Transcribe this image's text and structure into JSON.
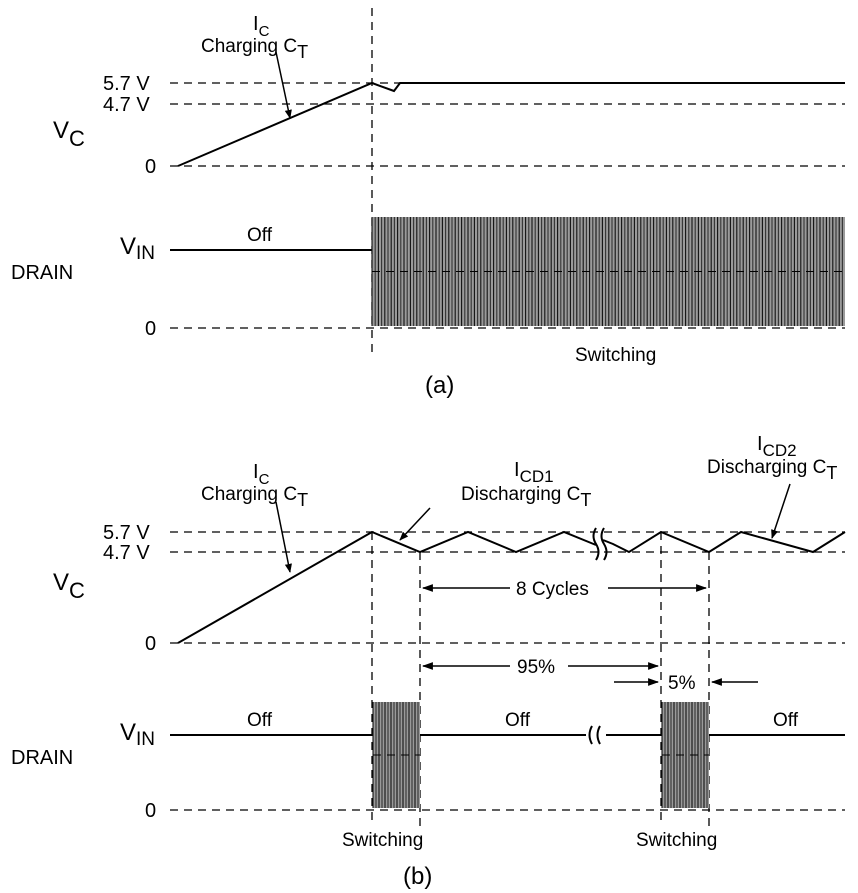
{
  "panel_a": {
    "vc_label_main": "V",
    "vc_label_sub": "C",
    "level_5_7": "5.7 V",
    "level_4_7": "4.7 V",
    "level_zero_vc": "0",
    "ic_main": "I",
    "ic_sub": "C",
    "charging_main": "Charging C",
    "charging_sub": "T",
    "drain_label": "DRAIN",
    "vin_main": "V",
    "vin_sub": "IN",
    "level_zero_drain": "0",
    "off_label": "Off",
    "switching_label": "Switching",
    "caption": "(a)"
  },
  "panel_b": {
    "vc_label_main": "V",
    "vc_label_sub": "C",
    "level_5_7": "5.7 V",
    "level_4_7": "4.7 V",
    "level_zero_vc": "0",
    "ic_main": "I",
    "ic_sub": "C",
    "charging_main": "Charging C",
    "charging_sub": "T",
    "icd1_main": "I",
    "icd1_sub": "CD1",
    "discharging1_main": "Discharging C",
    "discharging1_sub": "T",
    "icd2_main": "I",
    "icd2_sub": "CD2",
    "discharging2_main": "Discharging C",
    "discharging2_sub": "T",
    "cycles_label": "8 Cycles",
    "percent_95": "95%",
    "percent_5": "5%",
    "drain_label": "DRAIN",
    "vin_main": "V",
    "vin_sub": "IN",
    "level_zero_drain": "0",
    "off_1": "Off",
    "off_2": "Off",
    "off_3": "Off",
    "switching_1": "Switching",
    "switching_2": "Switching",
    "caption": "(b)"
  }
}
